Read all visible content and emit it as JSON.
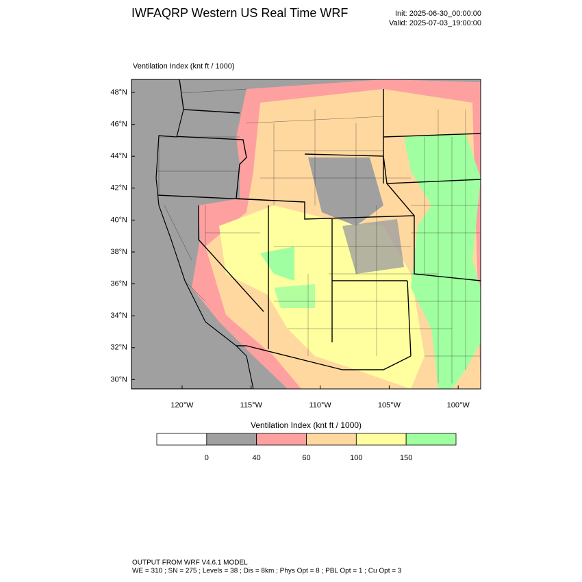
{
  "header": {
    "title": "IWFAQRP Western US Real Time WRF",
    "init": "Init: 2025-06-30_00:00:00",
    "valid": "Valid: 2025-07-03_19:00:00"
  },
  "map": {
    "subtitle": "Ventilation Index   (knt ft / 1000)",
    "lat_labels": [
      "48°N",
      "46°N",
      "44°N",
      "42°N",
      "40°N",
      "38°N",
      "36°N",
      "34°N",
      "32°N",
      "30°N"
    ],
    "lon_labels": [
      "120°W",
      "115°W",
      "110°W",
      "105°W",
      "100°W"
    ]
  },
  "colorbar": {
    "title": "Ventilation Index   (knt ft / 1000)",
    "colors": [
      "#ffffff",
      "#a0a0a0",
      "#ffa0a0",
      "#ffd8a0",
      "#ffffa0",
      "#a0ffa0"
    ],
    "ticks": [
      0,
      40,
      60,
      100,
      150
    ]
  },
  "footer": {
    "line1": "OUTPUT FROM WRF V4.6.1 MODEL",
    "line2": "WE = 310 ; SN = 275 ; Levels = 38 ; Dis = 8km ; Phys Opt = 8 ; PBL Opt = 1 ; Cu Opt = 3"
  }
}
